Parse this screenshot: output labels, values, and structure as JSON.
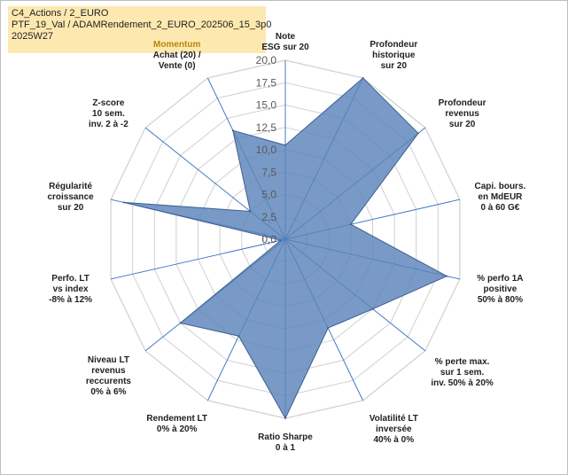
{
  "header": {
    "line1": "C4_Actions / 2_EURO",
    "line2": "PTF_19_Val / ADAMRendement_2_EURO_202506_15_3p0",
    "line3": "2025W27"
  },
  "colors": {
    "fill": "#5b84b9",
    "stroke": "#3a5f91",
    "grid": "#d0d0d0",
    "spoke": "#3070c0",
    "header_bg": "#fde9b0"
  },
  "chart_data": {
    "type": "radar",
    "rmin": 0,
    "rmax": 20,
    "ticks": [
      "0,0",
      "2,5",
      "5,0",
      "7,5",
      "10,0",
      "12,5",
      "15,0",
      "17,5",
      "20,0"
    ],
    "axes": [
      {
        "lines": [
          "Note",
          "ESG sur 20"
        ],
        "value": 10.5
      },
      {
        "lines": [
          "Profondeur",
          "historique",
          "sur 20"
        ],
        "value": 20
      },
      {
        "lines": [
          "Profondeur",
          "revenus",
          "sur 20"
        ],
        "value": 19
      },
      {
        "lines": [
          "Capi. bours.",
          "en MdEUR",
          "0 à 60 G€"
        ],
        "value": 7.5
      },
      {
        "lines": [
          "% perfo 1A",
          "positive",
          "50% à 80%"
        ],
        "value": 18.5
      },
      {
        "lines": [
          "% perte max.",
          "sur 1 sem.",
          "inv. 50% à 20%"
        ],
        "value": 12.5
      },
      {
        "lines": [
          "Volatilité LT",
          "inversée",
          "40% à 0%"
        ],
        "value": 11
      },
      {
        "lines": [
          "Ratio Sharpe",
          "0 à 1"
        ],
        "value": 20
      },
      {
        "lines": [
          "Rendement LT",
          "0% à 20%"
        ],
        "value": 12
      },
      {
        "lines": [
          "Niveau LT",
          "revenus",
          "reccurents",
          "0% à 6%"
        ],
        "value": 15
      },
      {
        "lines": [
          "Perfo. LT",
          "vs index",
          "-8% à 12%"
        ],
        "value": 0.5
      },
      {
        "lines": [
          "Régularité",
          "croissance",
          "sur 20"
        ],
        "value": 18.5
      },
      {
        "lines": [
          "Z-score",
          "10 sem.",
          "inv. 2 à -2"
        ],
        "value": 5
      },
      {
        "lines": [
          "Momentum",
          "Achat (20) /",
          "Vente (0)"
        ],
        "value": 13.5
      }
    ]
  }
}
